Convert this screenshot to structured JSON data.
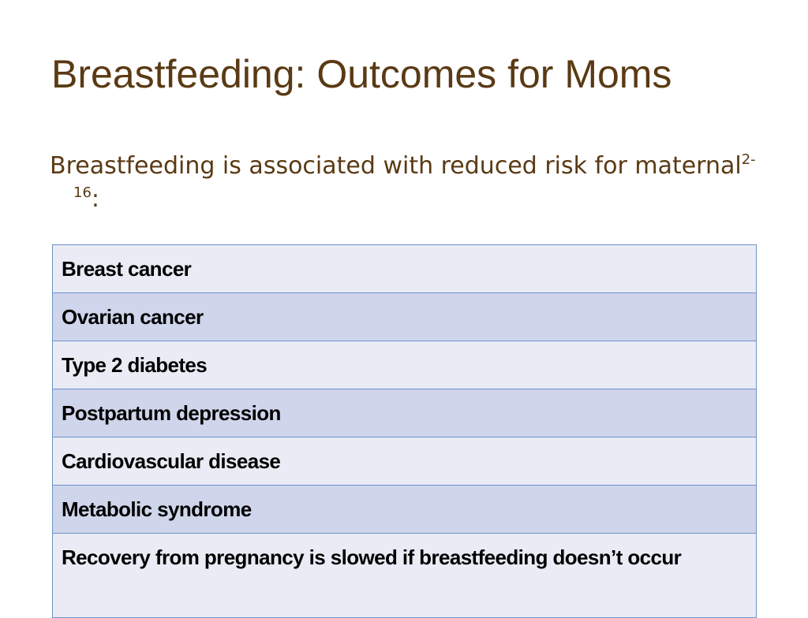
{
  "slide": {
    "title": "Breastfeeding: Outcomes for Moms",
    "intro_text": "Breastfeeding is associated with reduced risk for maternal",
    "intro_superscript": "2-16",
    "intro_suffix": ":"
  },
  "outcomes": [
    "Breast cancer",
    "Ovarian cancer",
    "Type 2 diabetes",
    "Postpartum depression",
    "Cardiovascular disease",
    "Metabolic syndrome",
    "Recovery from pregnancy is slowed if breastfeeding doesn’t occur"
  ],
  "colors": {
    "title": "#5a3a14",
    "row_light": "#e9ebf5",
    "row_dark": "#cfd5ea",
    "border": "#6f93c9"
  }
}
